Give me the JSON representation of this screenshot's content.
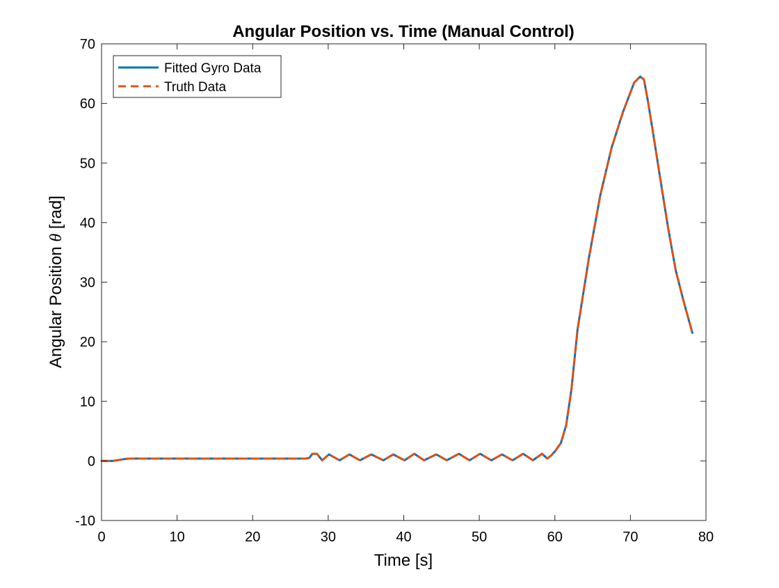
{
  "chart_data": {
    "type": "line",
    "title": "Angular Position vs. Time (Manual Control)",
    "xlabel": "Time [s]",
    "ylabel_prefix": "Angular Position ",
    "ylabel_symbol": "θ",
    "ylabel_suffix": " [rad]",
    "xlim": [
      0,
      80
    ],
    "ylim": [
      -10,
      70
    ],
    "xticks": [
      0,
      10,
      20,
      30,
      40,
      50,
      60,
      70,
      80
    ],
    "yticks": [
      -10,
      0,
      10,
      20,
      30,
      40,
      50,
      60,
      70
    ],
    "grid": false,
    "legend_position": "top-left",
    "x": [
      0,
      1.5,
      3,
      3.5,
      10,
      20,
      27,
      27.5,
      27.9,
      28.5,
      29.2,
      30.1,
      31.5,
      32.8,
      34.2,
      35.7,
      37.3,
      38.6,
      40.1,
      41.4,
      42.7,
      44.3,
      45.7,
      47.3,
      48.7,
      50.1,
      51.6,
      53.0,
      54.4,
      55.8,
      57.1,
      58.3,
      59.0,
      59.5,
      60.0,
      60.8,
      61.5,
      62.2,
      63.0,
      64.5,
      66.0,
      67.5,
      69.0,
      70.5,
      71.3,
      71.8,
      72.3,
      73.0,
      74.0,
      75.0,
      76.0,
      77.0,
      78.2
    ],
    "series": [
      {
        "name": "Fitted Gyro Data",
        "color": "#0072BD",
        "style": "solid",
        "values": [
          0,
          0,
          0.3,
          0.4,
          0.4,
          0.4,
          0.4,
          0.5,
          1.2,
          1.2,
          0.1,
          1.1,
          0.1,
          1.1,
          0.1,
          1.1,
          0.1,
          1.1,
          0.1,
          1.2,
          0.1,
          1.1,
          0.1,
          1.2,
          0.1,
          1.2,
          0.1,
          1.1,
          0.1,
          1.2,
          0.1,
          1.2,
          0.4,
          0.9,
          1.6,
          3.0,
          6.0,
          12.0,
          22.0,
          34.0,
          44.5,
          52.5,
          58.5,
          63.5,
          64.5,
          64.0,
          60.5,
          55.0,
          47.0,
          39.0,
          32.0,
          27.0,
          21.5
        ]
      },
      {
        "name": "Truth Data",
        "color": "#D95319",
        "style": "dashed",
        "values": [
          0,
          0,
          0.3,
          0.4,
          0.4,
          0.4,
          0.4,
          0.5,
          1.2,
          1.2,
          0.1,
          1.1,
          0.1,
          1.1,
          0.1,
          1.1,
          0.1,
          1.1,
          0.1,
          1.2,
          0.1,
          1.1,
          0.1,
          1.2,
          0.1,
          1.2,
          0.1,
          1.1,
          0.1,
          1.2,
          0.1,
          1.2,
          0.4,
          0.9,
          1.6,
          3.0,
          6.0,
          12.0,
          22.0,
          34.0,
          44.5,
          52.5,
          58.5,
          63.5,
          64.5,
          64.0,
          60.5,
          55.0,
          47.0,
          39.0,
          32.0,
          27.0,
          21.5
        ]
      }
    ]
  }
}
